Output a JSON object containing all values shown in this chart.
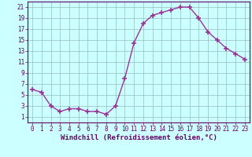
{
  "x": [
    0,
    1,
    2,
    3,
    4,
    5,
    6,
    7,
    8,
    9,
    10,
    11,
    12,
    13,
    14,
    15,
    16,
    17,
    18,
    19,
    20,
    21,
    22,
    23
  ],
  "y": [
    6.0,
    5.5,
    3.0,
    2.0,
    2.5,
    2.5,
    2.0,
    2.0,
    1.5,
    3.0,
    8.0,
    14.5,
    18.0,
    19.5,
    20.0,
    20.5,
    21.0,
    21.0,
    19.0,
    16.5,
    15.0,
    13.5,
    12.5,
    11.5
  ],
  "line_color": "#993399",
  "marker": "+",
  "marker_size": 4,
  "marker_lw": 1.2,
  "line_width": 1.0,
  "bg_color": "#ccffff",
  "grid_color": "#99bbbb",
  "xlabel": "Windchill (Refroidissement éolien,°C)",
  "xlim": [
    -0.5,
    23.5
  ],
  "ylim": [
    0,
    22
  ],
  "yticks": [
    1,
    3,
    5,
    7,
    9,
    11,
    13,
    15,
    17,
    19,
    21
  ],
  "xticks": [
    0,
    1,
    2,
    3,
    4,
    5,
    6,
    7,
    8,
    9,
    10,
    11,
    12,
    13,
    14,
    15,
    16,
    17,
    18,
    19,
    20,
    21,
    22,
    23
  ],
  "label_color": "#660066",
  "tick_fontsize": 5.5,
  "xlabel_fontsize": 6.5
}
